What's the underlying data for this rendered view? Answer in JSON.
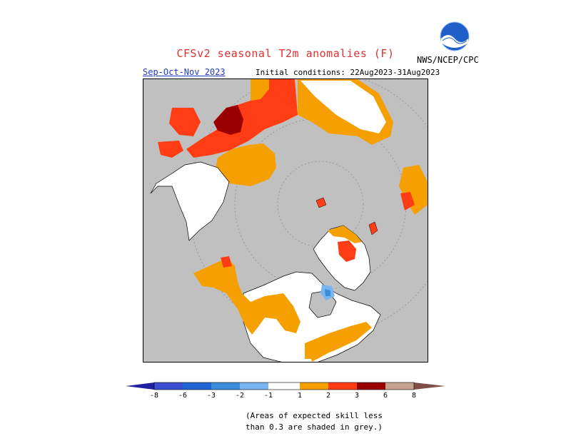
{
  "header": {
    "title": "CFSv2 seasonal T2m anomalies (F)",
    "season": "Sep-Oct-Nov 2023",
    "initial_conditions": "Initial conditions: 22Aug2023-31Aug2023",
    "agency": "NWS/NCEP/CPC",
    "logo_text": "NOAA"
  },
  "colors": {
    "skill_grey": "#c0c0c0",
    "land_white": "#ffffff",
    "bin_1_2": "#f5a000",
    "bin_2_3": "#ff3c14",
    "bin_3_6": "#9b0000",
    "cold_1_2": "#78b4f0",
    "cold_2_3": "#3c8cdc"
  },
  "legend": {
    "ticks": [
      "-8",
      "-6",
      "-3",
      "-2",
      "-1",
      "1",
      "2",
      "3",
      "6",
      "8"
    ],
    "colors": [
      "#2020a0",
      "#3a50d0",
      "#1e64d2",
      "#3c8cdc",
      "#78b4f0",
      "#ffffff",
      "#f5a000",
      "#ff3c14",
      "#9b0000",
      "#c8a090",
      "#805048"
    ]
  },
  "note": {
    "line1": "(Areas of expected skill less",
    "line2": "than 0.3 are shaded in grey.)"
  }
}
